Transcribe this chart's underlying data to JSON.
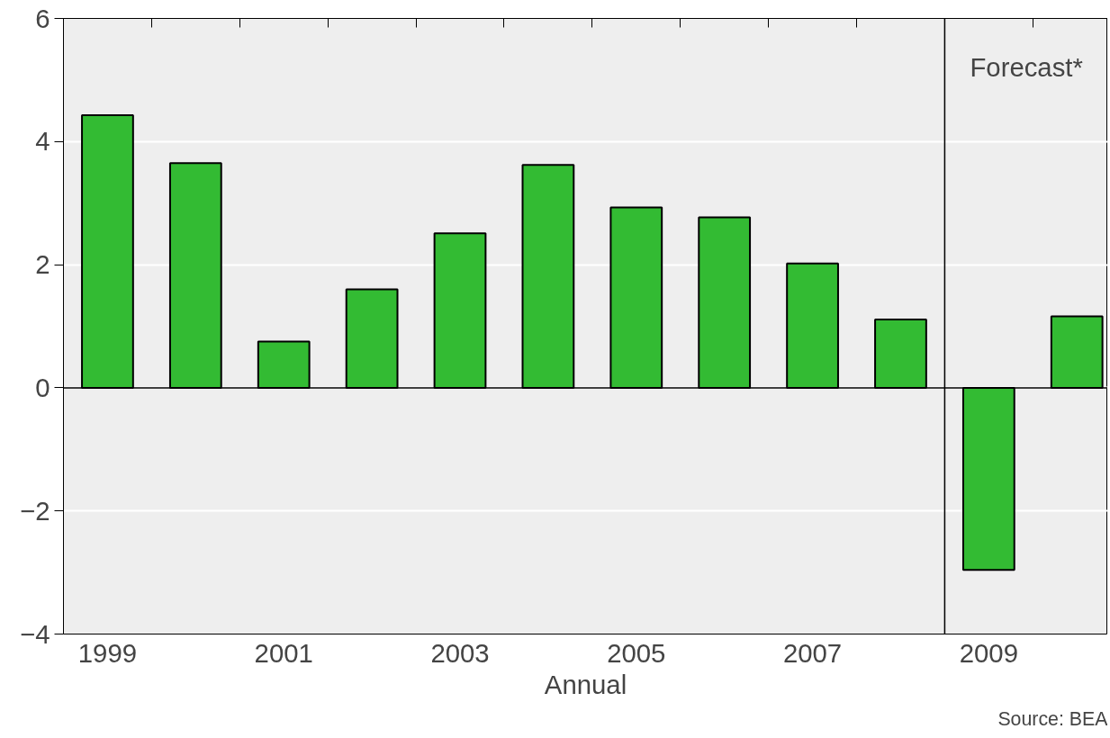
{
  "chart_data": {
    "type": "bar",
    "xlabel": "Annual",
    "x": [
      1999,
      2000,
      2001,
      2002,
      2003,
      2004,
      2005,
      2006,
      2007,
      2008,
      2009,
      2010
    ],
    "values": [
      4.43,
      3.65,
      0.75,
      1.6,
      2.51,
      3.62,
      2.93,
      2.77,
      2.02,
      1.11,
      -2.96,
      1.16
    ],
    "color": "#33bb33",
    "xlim": [
      1998.5,
      2010.35
    ],
    "xticks": [
      1999,
      2001,
      2003,
      2005,
      2007,
      2009
    ],
    "ylim": [
      -4,
      6
    ],
    "yticks": [
      -4,
      -2,
      0,
      2,
      4,
      6
    ],
    "grid": "y",
    "ref_lines": [
      {
        "axis": "y",
        "value": 0,
        "label": null,
        "color": "#000000"
      },
      {
        "axis": "x",
        "value": 2008.5,
        "label": "Forecast*",
        "color": "#000000"
      }
    ],
    "annotations": [
      "Source: BEA"
    ]
  }
}
